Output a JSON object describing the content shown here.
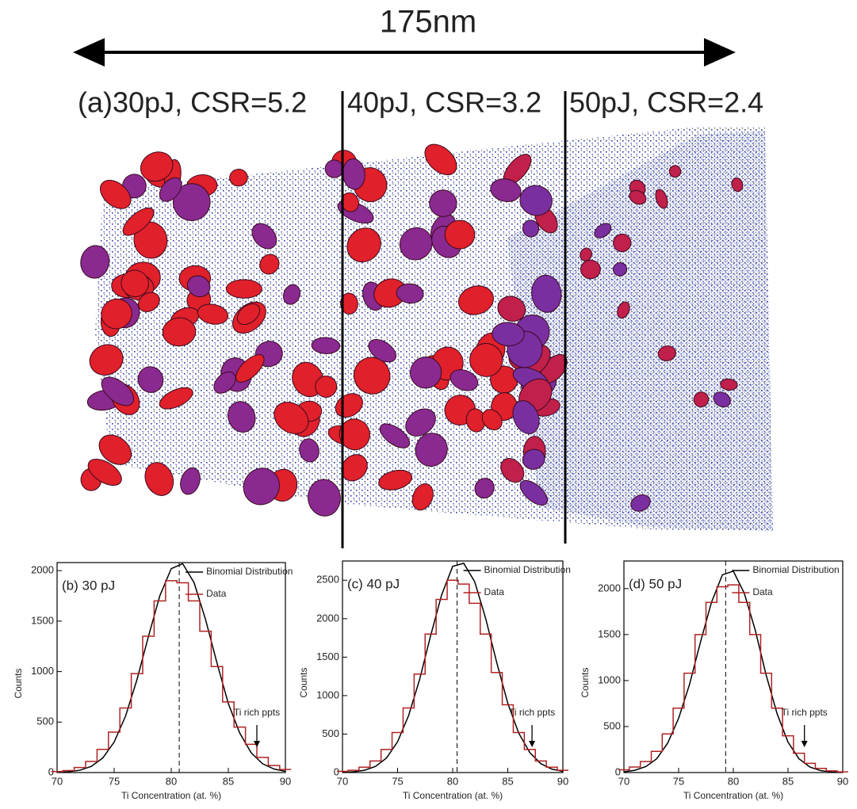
{
  "scale_bar": "175nm",
  "panel_labels": [
    "(a)30pJ, CSR=5.2",
    "40pJ, CSR=3.2",
    "50pJ, CSR=2.4"
  ],
  "chart_data": [
    {
      "type": "line",
      "title": "(b) 30 pJ",
      "xlabel": "Ti Concentration (at. %)",
      "ylabel": "Counts",
      "x": [
        70,
        71,
        72,
        73,
        74,
        75,
        76,
        77,
        78,
        79,
        80,
        81,
        82,
        83,
        84,
        85,
        86,
        87,
        88,
        89,
        90
      ],
      "series": [
        {
          "name": "Binomial Distribution",
          "color": "#000000",
          "values": [
            2,
            8,
            23,
            61,
            144,
            302,
            560,
            921,
            1348,
            1751,
            2020,
            2069,
            1881,
            1518,
            1089,
            684,
            391,
            196,
            87,
            35,
            12
          ]
        },
        {
          "name": "Data",
          "color": "#b22222",
          "step": true,
          "values": [
            10,
            20,
            50,
            110,
            230,
            400,
            640,
            980,
            1350,
            1700,
            1900,
            1880,
            1700,
            1400,
            1050,
            700,
            450,
            280,
            150,
            70,
            30
          ]
        }
      ],
      "vline": 80.7,
      "annotation": {
        "text": "Ti rich ppts",
        "x": 87.5
      },
      "xlim": [
        70,
        90
      ],
      "xticks": [
        70,
        75,
        80,
        85,
        90
      ],
      "ylim": [
        0,
        2080
      ],
      "yticks": [
        0,
        500,
        1000,
        1500,
        2000
      ],
      "legend": "upper right"
    },
    {
      "type": "line",
      "title": "(c) 40 pJ",
      "xlabel": "Ti Concentration (at. %)",
      "ylabel": "Counts",
      "x": [
        70,
        71,
        72,
        73,
        74,
        75,
        76,
        77,
        78,
        79,
        80,
        81,
        82,
        83,
        84,
        85,
        86,
        87,
        88,
        89,
        90
      ],
      "series": [
        {
          "name": "Binomial Distribution",
          "color": "#000000",
          "values": [
            3,
            10,
            30,
            80,
            190,
            400,
            740,
            1210,
            1780,
            2310,
            2680,
            2720,
            2480,
            2000,
            1430,
            900,
            510,
            260,
            115,
            45,
            15
          ]
        },
        {
          "name": "Data",
          "color": "#b22222",
          "step": true,
          "values": [
            15,
            30,
            70,
            150,
            300,
            520,
            840,
            1280,
            1800,
            2250,
            2500,
            2450,
            2200,
            1800,
            1300,
            880,
            520,
            300,
            150,
            70,
            30
          ]
        }
      ],
      "vline": 80.4,
      "annotation": {
        "text": "Ti rich ppts",
        "x": 87.2
      },
      "xlim": [
        70,
        90
      ],
      "xticks": [
        70,
        75,
        80,
        85,
        90
      ],
      "ylim": [
        0,
        2750
      ],
      "yticks": [
        0,
        500,
        1000,
        1500,
        2000,
        2500
      ],
      "legend": "upper right"
    },
    {
      "type": "line",
      "title": "(d) 50 pJ",
      "xlabel": "Ti Concentration (at. %)",
      "ylabel": "Counts",
      "x": [
        70,
        71,
        72,
        73,
        74,
        75,
        76,
        77,
        78,
        79,
        80,
        81,
        82,
        83,
        84,
        85,
        86,
        87,
        88,
        89,
        90
      ],
      "series": [
        {
          "name": "Binomial Distribution",
          "color": "#000000",
          "values": [
            8,
            25,
            65,
            150,
            320,
            590,
            960,
            1420,
            1850,
            2150,
            2190,
            1950,
            1550,
            1060,
            640,
            330,
            150,
            60,
            20,
            6,
            2
          ]
        },
        {
          "name": "Data",
          "color": "#b22222",
          "step": true,
          "values": [
            30,
            60,
            120,
            230,
            420,
            700,
            1080,
            1500,
            1850,
            2020,
            2040,
            1850,
            1500,
            1080,
            700,
            400,
            210,
            100,
            45,
            18,
            8
          ]
        }
      ],
      "vline": 79.3,
      "annotation": {
        "text": "Ti rich ppts",
        "x": 86.5
      },
      "xlim": [
        70,
        90
      ],
      "xticks": [
        70,
        75,
        80,
        85,
        90
      ],
      "ylim": [
        0,
        2300
      ],
      "yticks": [
        0,
        500,
        1000,
        1500,
        2000
      ],
      "legend": "upper right"
    }
  ]
}
